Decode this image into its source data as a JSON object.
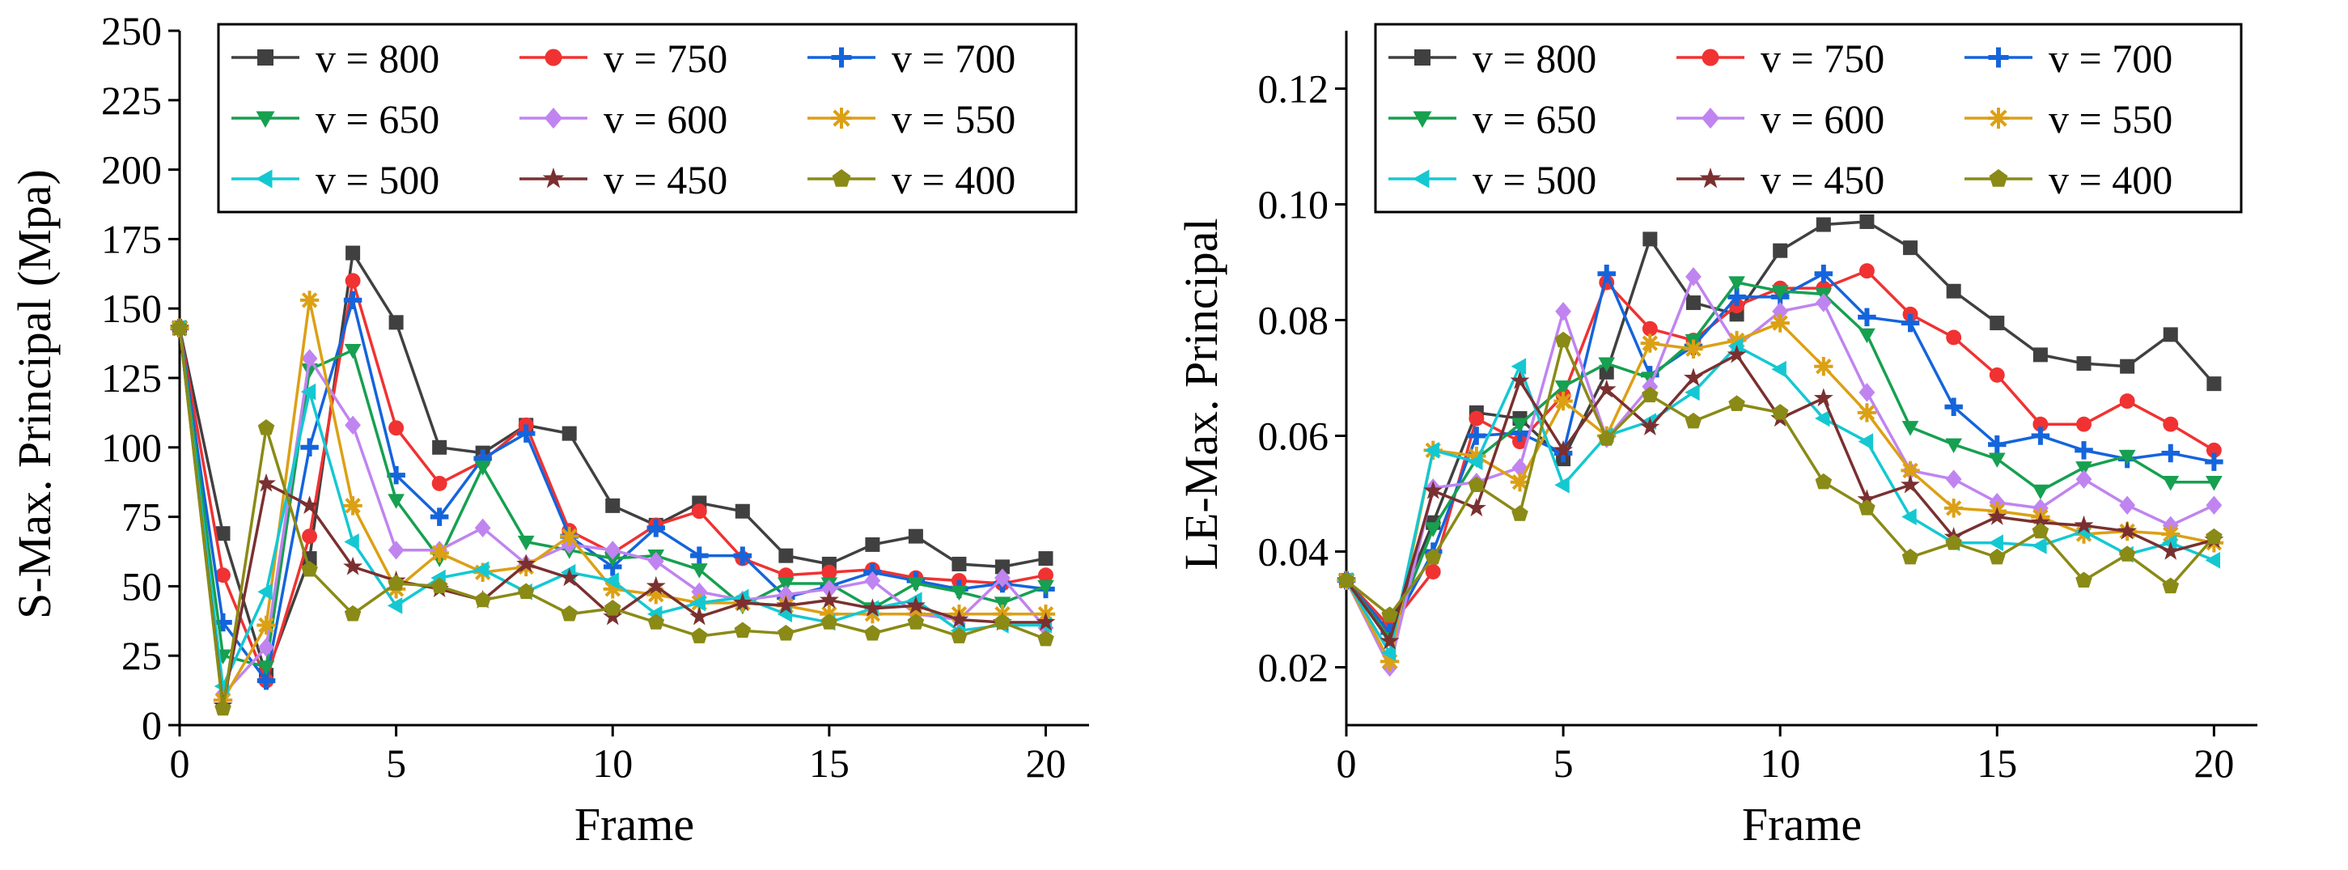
{
  "chart_data": [
    {
      "type": "line",
      "xlabel": "Frame",
      "ylabel": "S-Max. Principal (Mpa)",
      "xlim": [
        0,
        21
      ],
      "ylim": [
        0,
        250
      ],
      "xticks": [
        "0",
        "5",
        "10",
        "15",
        "20"
      ],
      "xtick_values": [
        0,
        5,
        10,
        15,
        20
      ],
      "yticks": [
        "0",
        "25",
        "50",
        "75",
        "100",
        "125",
        "150",
        "175",
        "200",
        "225",
        "250"
      ],
      "ytick_values": [
        0,
        25,
        50,
        75,
        100,
        125,
        150,
        175,
        200,
        225,
        250
      ],
      "legend_position": "top",
      "x": [
        0,
        1,
        2,
        3,
        4,
        5,
        6,
        7,
        8,
        9,
        10,
        11,
        12,
        13,
        14,
        15,
        16,
        17,
        18,
        19,
        20
      ],
      "series": [
        {
          "name": "v = 800",
          "color": "#404040",
          "marker": "square",
          "values": [
            143,
            69,
            18,
            60,
            170,
            145,
            100,
            98,
            108,
            105,
            79,
            72,
            80,
            77,
            61,
            58,
            65,
            68,
            58,
            57,
            60
          ]
        },
        {
          "name": "v = 750",
          "color": "#f03232",
          "marker": "circle",
          "values": [
            143,
            54,
            16,
            68,
            160,
            107,
            87,
            95,
            108,
            70,
            62,
            72,
            77,
            60,
            54,
            55,
            56,
            53,
            52,
            51,
            54
          ]
        },
        {
          "name": "v = 700",
          "color": "#1464dc",
          "marker": "plus",
          "values": [
            143,
            37,
            16,
            100,
            153,
            90,
            75,
            96,
            105,
            68,
            57,
            71,
            61,
            61,
            46,
            50,
            55,
            52,
            49,
            51,
            49
          ]
        },
        {
          "name": "v = 650",
          "color": "#16a050",
          "marker": "triangle-down",
          "values": [
            143,
            25,
            21,
            128,
            135,
            81,
            60,
            93,
            66,
            63,
            60,
            61,
            56,
            43,
            51,
            51,
            42,
            51,
            48,
            44,
            50
          ]
        },
        {
          "name": "v = 600",
          "color": "#c084f0",
          "marker": "diamond",
          "values": [
            143,
            11,
            28,
            132,
            108,
            63,
            63,
            71,
            58,
            65,
            63,
            59,
            48,
            45,
            47,
            49,
            52,
            40,
            38,
            53,
            35
          ]
        },
        {
          "name": "v = 550",
          "color": "#dca014",
          "marker": "asterisk",
          "values": [
            143,
            9,
            36,
            153,
            79,
            49,
            62,
            55,
            57,
            68,
            49,
            47,
            44,
            44,
            43,
            40,
            40,
            40,
            40,
            40,
            40
          ]
        },
        {
          "name": "v = 500",
          "color": "#14c8d2",
          "marker": "triangle-left",
          "values": [
            143,
            14,
            48,
            120,
            66,
            43,
            53,
            56,
            48,
            55,
            52,
            40,
            44,
            46,
            40,
            37,
            42,
            45,
            34,
            36,
            36
          ]
        },
        {
          "name": "v = 450",
          "color": "#7a3030",
          "marker": "star",
          "values": [
            143,
            7,
            87,
            79,
            57,
            52,
            49,
            45,
            58,
            53,
            39,
            50,
            39,
            44,
            43,
            45,
            42,
            43,
            38,
            37,
            37
          ]
        },
        {
          "name": "v = 400",
          "color": "#8a8a16",
          "marker": "pentagon",
          "values": [
            143,
            6,
            107,
            56,
            40,
            51,
            50,
            45,
            48,
            40,
            42,
            37,
            32,
            34,
            33,
            37,
            33,
            37,
            32,
            37,
            31
          ]
        }
      ]
    },
    {
      "type": "line",
      "xlabel": "Frame",
      "ylabel": "LE-Max. Principal",
      "xlim": [
        0,
        21
      ],
      "ylim": [
        0.01,
        0.13
      ],
      "xticks": [
        "0",
        "5",
        "10",
        "15",
        "20"
      ],
      "xtick_values": [
        0,
        5,
        10,
        15,
        20
      ],
      "yticks": [
        "0.02",
        "0.04",
        "0.06",
        "0.08",
        "0.10",
        "0.12"
      ],
      "ytick_values": [
        0.02,
        0.04,
        0.06,
        0.08,
        0.1,
        0.12
      ],
      "legend_position": "top",
      "x": [
        0,
        1,
        2,
        3,
        4,
        5,
        6,
        7,
        8,
        9,
        10,
        11,
        12,
        13,
        14,
        15,
        16,
        17,
        18,
        19,
        20
      ],
      "series": [
        {
          "name": "v = 800",
          "color": "#404040",
          "marker": "square",
          "values": [
            0.035,
            0.027,
            0.045,
            0.064,
            0.063,
            0.056,
            0.071,
            0.094,
            0.083,
            0.081,
            0.092,
            0.0965,
            0.097,
            0.0925,
            0.085,
            0.0795,
            0.074,
            0.0725,
            0.072,
            0.0775,
            0.069
          ]
        },
        {
          "name": "v = 750",
          "color": "#f03232",
          "marker": "circle",
          "values": [
            0.035,
            0.027,
            0.0365,
            0.063,
            0.059,
            0.067,
            0.0865,
            0.0785,
            0.0765,
            0.0825,
            0.0855,
            0.0855,
            0.0885,
            0.081,
            0.077,
            0.0705,
            0.062,
            0.062,
            0.066,
            0.062,
            0.0575
          ]
        },
        {
          "name": "v = 700",
          "color": "#1464dc",
          "marker": "plus",
          "values": [
            0.035,
            0.026,
            0.04,
            0.06,
            0.0605,
            0.057,
            0.088,
            0.0705,
            0.0755,
            0.084,
            0.084,
            0.088,
            0.0805,
            0.0795,
            0.065,
            0.0585,
            0.06,
            0.0575,
            0.056,
            0.057,
            0.0555
          ]
        },
        {
          "name": "v = 650",
          "color": "#16a050",
          "marker": "triangle-down",
          "values": [
            0.035,
            0.025,
            0.044,
            0.056,
            0.062,
            0.0685,
            0.0725,
            0.07,
            0.0765,
            0.0865,
            0.085,
            0.0845,
            0.0775,
            0.0615,
            0.0585,
            0.056,
            0.0505,
            0.0545,
            0.0565,
            0.052,
            0.052
          ]
        },
        {
          "name": "v = 600",
          "color": "#c084f0",
          "marker": "diamond",
          "values": [
            0.035,
            0.02,
            0.051,
            0.052,
            0.0545,
            0.0815,
            0.0595,
            0.0685,
            0.0875,
            0.0755,
            0.0815,
            0.083,
            0.0675,
            0.054,
            0.0525,
            0.0485,
            0.0475,
            0.0525,
            0.048,
            0.0445,
            0.048
          ]
        },
        {
          "name": "v = 550",
          "color": "#dca014",
          "marker": "asterisk",
          "values": [
            0.035,
            0.021,
            0.0575,
            0.0565,
            0.052,
            0.066,
            0.06,
            0.076,
            0.075,
            0.0765,
            0.0795,
            0.072,
            0.064,
            0.054,
            0.0475,
            0.047,
            0.046,
            0.043,
            0.0435,
            0.043,
            0.0415
          ]
        },
        {
          "name": "v = 500",
          "color": "#14c8d2",
          "marker": "triangle-left",
          "values": [
            0.035,
            0.0225,
            0.0575,
            0.0555,
            0.072,
            0.0515,
            0.06,
            0.0625,
            0.0675,
            0.0755,
            0.0715,
            0.063,
            0.059,
            0.046,
            0.0415,
            0.0415,
            0.041,
            0.0435,
            0.0395,
            0.0415,
            0.0385
          ]
        },
        {
          "name": "v = 450",
          "color": "#7a3030",
          "marker": "star",
          "values": [
            0.035,
            0.0245,
            0.0505,
            0.0475,
            0.0695,
            0.0575,
            0.068,
            0.0615,
            0.07,
            0.074,
            0.063,
            0.0665,
            0.049,
            0.0515,
            0.0425,
            0.046,
            0.045,
            0.0445,
            0.0435,
            0.04,
            0.042
          ]
        },
        {
          "name": "v = 400",
          "color": "#8a8a16",
          "marker": "pentagon",
          "values": [
            0.035,
            0.029,
            0.039,
            0.0515,
            0.0465,
            0.0765,
            0.0595,
            0.067,
            0.0625,
            0.0655,
            0.064,
            0.052,
            0.0475,
            0.039,
            0.0415,
            0.039,
            0.0435,
            0.035,
            0.0395,
            0.034,
            0.0425
          ]
        }
      ]
    }
  ]
}
